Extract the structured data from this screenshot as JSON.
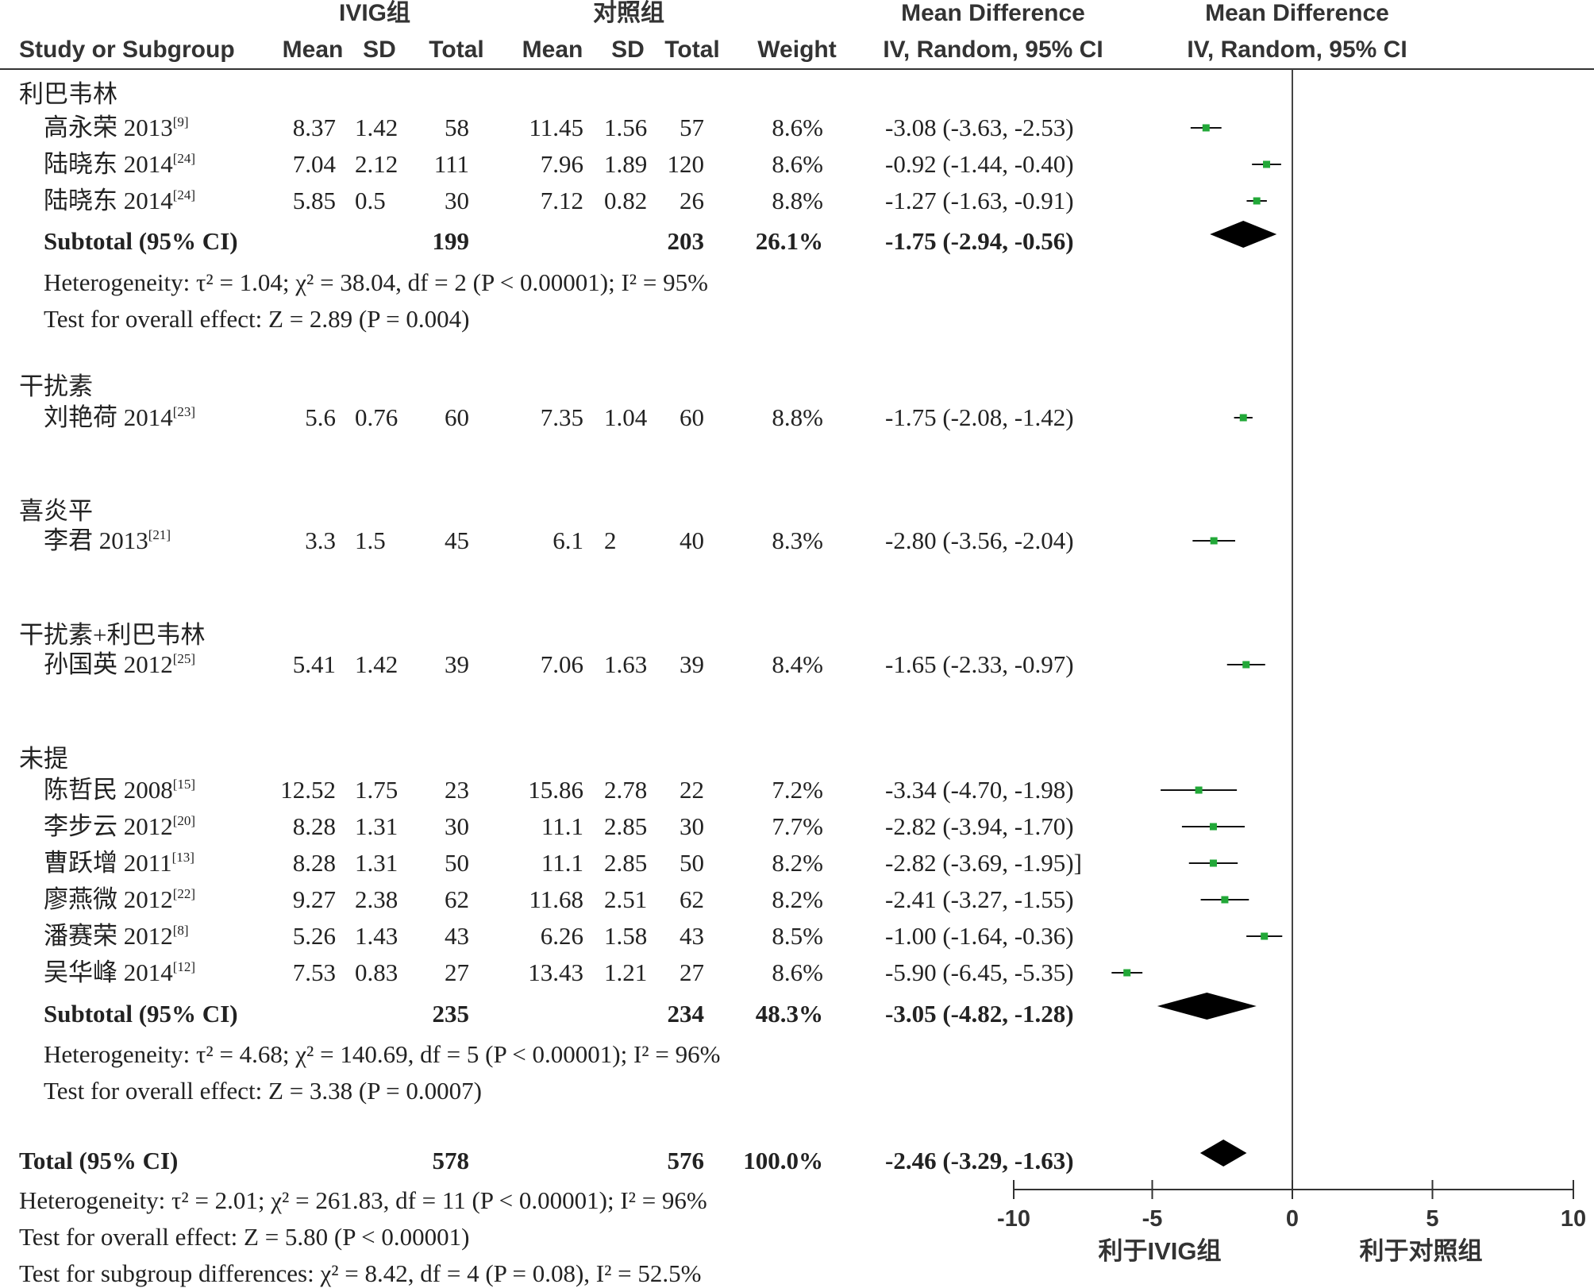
{
  "header": {
    "group_exp": "IVIG组",
    "group_ctl": "对照组",
    "md_title_left": "Mean Difference",
    "md_title_right": "Mean Difference",
    "study_col": "Study or Subgroup",
    "mean_exp": "Mean",
    "sd_exp": "SD",
    "total_exp": "Total",
    "mean_ctl": "Mean",
    "sd_ctl": "SD",
    "total_ctl": "Total",
    "weight": "Weight",
    "method_left": "IV, Random, 95% CI",
    "method_right": "IV, Random, 95% CI"
  },
  "chart_data": {
    "type": "forest",
    "x_axis": {
      "ticks": [
        "-10",
        "-5",
        "0",
        "5",
        "10"
      ],
      "xlim": [
        -10,
        10
      ]
    },
    "favours_left": "利于IVIG组",
    "favours_right": "利于对照组",
    "marker_color": "#22a838",
    "diamond_color": "#000000",
    "subgroups": [
      {
        "name": "利巴韦林",
        "studies": [
          {
            "name": "高永荣 2013",
            "ref": "[9]",
            "mean_e": "8.37",
            "sd_e": "1.42",
            "total_e": "58",
            "mean_c": "11.45",
            "sd_c": "1.56",
            "total_c": "57",
            "weight": "8.6%",
            "ci_text": "-3.08 (-3.63, -2.53)",
            "md": -3.08,
            "lo": -3.63,
            "hi": -2.53
          },
          {
            "name": "陆晓东 2014",
            "ref": "[24]",
            "mean_e": "7.04",
            "sd_e": "2.12",
            "total_e": "111",
            "mean_c": "7.96",
            "sd_c": "1.89",
            "total_c": "120",
            "weight": "8.6%",
            "ci_text": "-0.92 (-1.44, -0.40)",
            "md": -0.92,
            "lo": -1.44,
            "hi": -0.4
          },
          {
            "name": "陆晓东 2014",
            "ref": "[24]",
            "mean_e": "5.85",
            "sd_e": "0.5",
            "total_e": "30",
            "mean_c": "7.12",
            "sd_c": "0.82",
            "total_c": "26",
            "weight": "8.8%",
            "ci_text": "-1.27 (-1.63, -0.91)",
            "md": -1.27,
            "lo": -1.63,
            "hi": -0.91
          }
        ],
        "subtotal": {
          "label": "Subtotal (95% CI)",
          "total_e": "199",
          "total_c": "203",
          "weight": "26.1%",
          "ci_text": "-1.75 (-2.94, -0.56)",
          "md": -1.75,
          "lo": -2.94,
          "hi": -0.56
        },
        "heterogeneity": "Heterogeneity: τ² = 1.04; χ² = 38.04, df = 2 (P < 0.00001); I² = 95%",
        "overall": "Test for overall effect: Z = 2.89 (P = 0.004)"
      },
      {
        "name": "干扰素",
        "studies": [
          {
            "name": "刘艳荷 2014",
            "ref": "[23]",
            "mean_e": "5.6",
            "sd_e": "0.76",
            "total_e": "60",
            "mean_c": "7.35",
            "sd_c": "1.04",
            "total_c": "60",
            "weight": "8.8%",
            "ci_text": "-1.75 (-2.08, -1.42)",
            "md": -1.75,
            "lo": -2.08,
            "hi": -1.42
          }
        ]
      },
      {
        "name": "喜炎平",
        "studies": [
          {
            "name": "李君 2013",
            "ref": "[21]",
            "mean_e": "3.3",
            "sd_e": "1.5",
            "total_e": "45",
            "mean_c": "6.1",
            "sd_c": "2",
            "total_c": "40",
            "weight": "8.3%",
            "ci_text": "-2.80 (-3.56, -2.04)",
            "md": -2.8,
            "lo": -3.56,
            "hi": -2.04
          }
        ]
      },
      {
        "name": "干扰素+利巴韦林",
        "studies": [
          {
            "name": "孙国英 2012",
            "ref": "[25]",
            "mean_e": "5.41",
            "sd_e": "1.42",
            "total_e": "39",
            "mean_c": "7.06",
            "sd_c": "1.63",
            "total_c": "39",
            "weight": "8.4%",
            "ci_text": "-1.65 (-2.33, -0.97)",
            "md": -1.65,
            "lo": -2.33,
            "hi": -0.97
          }
        ]
      },
      {
        "name": "未提",
        "studies": [
          {
            "name": "陈哲民 2008",
            "ref": "[15]",
            "mean_e": "12.52",
            "sd_e": "1.75",
            "total_e": "23",
            "mean_c": "15.86",
            "sd_c": "2.78",
            "total_c": "22",
            "weight": "7.2%",
            "ci_text": "-3.34 (-4.70, -1.98)",
            "md": -3.34,
            "lo": -4.7,
            "hi": -1.98
          },
          {
            "name": "李步云 2012",
            "ref": "[20]",
            "mean_e": "8.28",
            "sd_e": "1.31",
            "total_e": "30",
            "mean_c": "11.1",
            "sd_c": "2.85",
            "total_c": "30",
            "weight": "7.7%",
            "ci_text": "-2.82 (-3.94, -1.70)",
            "md": -2.82,
            "lo": -3.94,
            "hi": -1.7
          },
          {
            "name": "曹跃增 2011",
            "ref": "[13]",
            "mean_e": "8.28",
            "sd_e": "1.31",
            "total_e": "50",
            "mean_c": "11.1",
            "sd_c": "2.85",
            "total_c": "50",
            "weight": "8.2%",
            "ci_text": "-2.82 (-3.69, -1.95)]",
            "md": -2.82,
            "lo": -3.69,
            "hi": -1.95
          },
          {
            "name": "廖燕微 2012",
            "ref": "[22]",
            "mean_e": "9.27",
            "sd_e": "2.38",
            "total_e": "62",
            "mean_c": "11.68",
            "sd_c": "2.51",
            "total_c": "62",
            "weight": "8.2%",
            "ci_text": "-2.41 (-3.27, -1.55)",
            "md": -2.41,
            "lo": -3.27,
            "hi": -1.55
          },
          {
            "name": "潘赛荣 2012",
            "ref": "[8]",
            "mean_e": "5.26",
            "sd_e": "1.43",
            "total_e": "43",
            "mean_c": "6.26",
            "sd_c": "1.58",
            "total_c": "43",
            "weight": "8.5%",
            "ci_text": "-1.00 (-1.64, -0.36)",
            "md": -1.0,
            "lo": -1.64,
            "hi": -0.36
          },
          {
            "name": "吴华峰 2014",
            "ref": "[12]",
            "mean_e": "7.53",
            "sd_e": "0.83",
            "total_e": "27",
            "mean_c": "13.43",
            "sd_c": "1.21",
            "total_c": "27",
            "weight": "8.6%",
            "ci_text": "-5.90 (-6.45, -5.35)",
            "md": -5.9,
            "lo": -6.45,
            "hi": -5.35
          }
        ],
        "subtotal": {
          "label": "Subtotal (95% CI)",
          "total_e": "235",
          "total_c": "234",
          "weight": "48.3%",
          "ci_text": "-3.05 (-4.82, -1.28)",
          "md": -3.05,
          "lo": -4.82,
          "hi": -1.28
        },
        "heterogeneity": "Heterogeneity: τ² = 4.68; χ² = 140.69, df = 5 (P < 0.00001); I² = 96%",
        "overall": "Test for overall effect: Z = 3.38 (P = 0.0007)"
      }
    ],
    "total": {
      "label": "Total (95% CI)",
      "total_e": "578",
      "total_c": "576",
      "weight": "100.0%",
      "ci_text": "-2.46 (-3.29, -1.63)",
      "md": -2.46,
      "lo": -3.29,
      "hi": -1.63,
      "heterogeneity": "Heterogeneity: τ² = 2.01; χ² = 261.83, df = 11 (P < 0.00001); I² = 96%",
      "overall": "Test for overall effect: Z = 5.80 (P < 0.00001)",
      "subgroup_diff": "Test for subgroup differences: χ² = 8.42, df = 4 (P = 0.08), I² = 52.5%"
    }
  }
}
